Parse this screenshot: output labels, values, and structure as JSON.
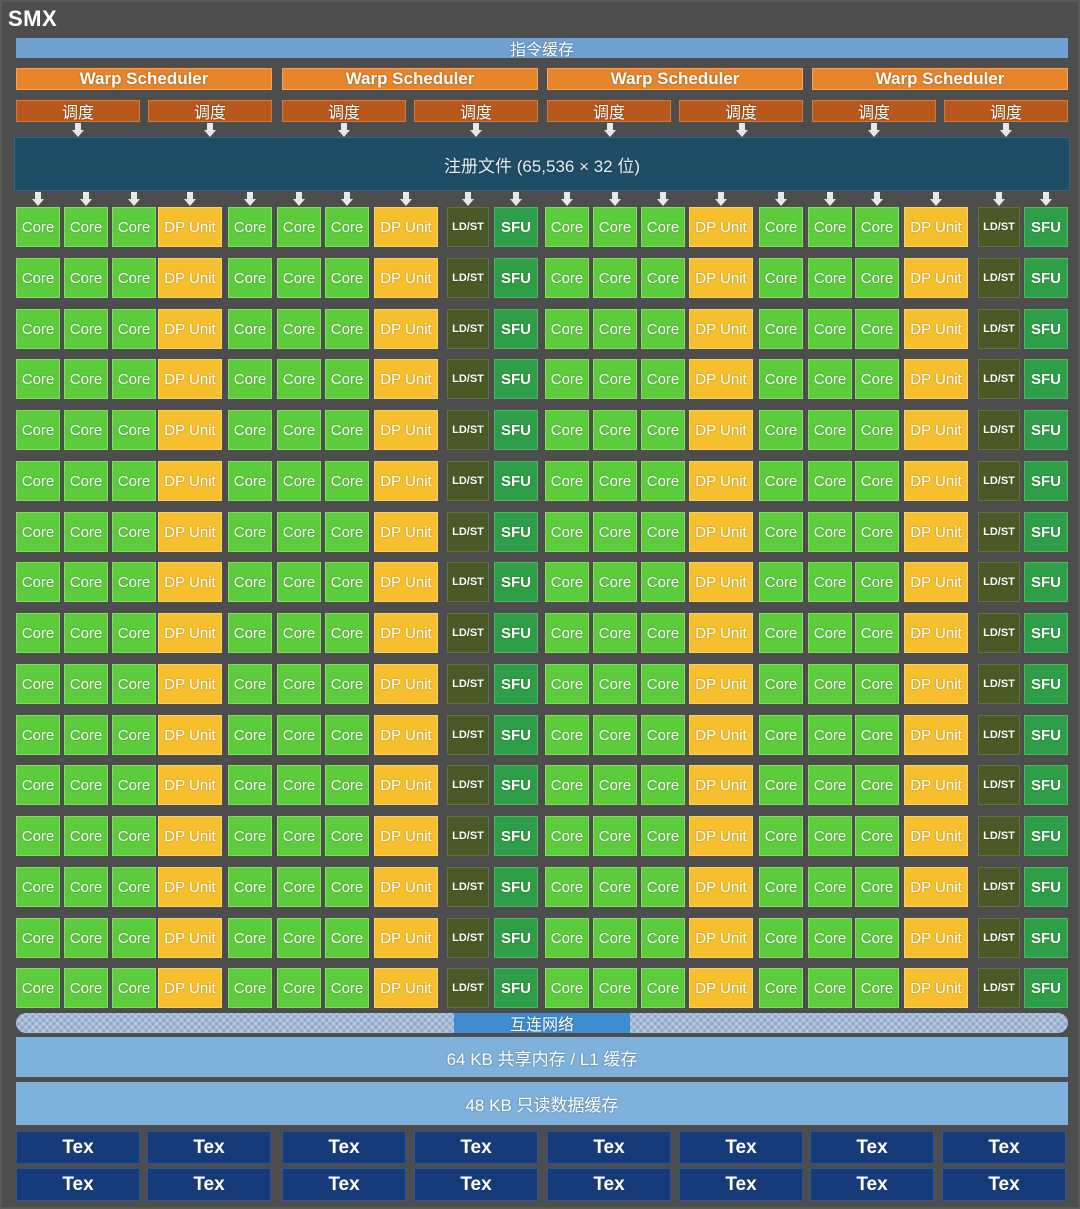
{
  "smx": {
    "title": "SMX"
  },
  "instruction_cache": "指令缓存",
  "warp_schedulers": [
    "Warp Scheduler",
    "Warp Scheduler",
    "Warp Scheduler",
    "Warp Scheduler"
  ],
  "dispatch_units": [
    "调度",
    "调度",
    "调度",
    "调度",
    "调度",
    "调度",
    "调度",
    "调度"
  ],
  "register_file": "注册文件 (65,536 × 32 位)",
  "unit_grid": {
    "rows": 16,
    "labels": {
      "core": "Core",
      "dp": "DP Unit",
      "ldst": "LD/ST",
      "sfu": "SFU"
    },
    "row_pattern": [
      "core",
      "core",
      "core",
      "dp",
      "core",
      "core",
      "core",
      "dp",
      "ldst",
      "sfu",
      "core",
      "core",
      "core",
      "dp",
      "core",
      "core",
      "core",
      "dp",
      "ldst",
      "sfu"
    ]
  },
  "interconnect": "互连网络",
  "shared_memory": "64 KB 共享内存 / L1 缓存",
  "readonly_cache": "48 KB 只读数据缓存",
  "tex_units": [
    "Tex",
    "Tex",
    "Tex",
    "Tex",
    "Tex",
    "Tex",
    "Tex",
    "Tex",
    "Tex",
    "Tex",
    "Tex",
    "Tex",
    "Tex",
    "Tex",
    "Tex",
    "Tex"
  ],
  "colors": {
    "core": "#5ccc3c",
    "dp_unit": "#f5bf2e",
    "ldst": "#4a5a26",
    "sfu": "#2f9e48",
    "warp_scheduler": "#e8852b",
    "dispatch": "#b9581c",
    "register_file": "#1f4d66",
    "cache": "#7eb1dc",
    "tex": "#173a78"
  }
}
